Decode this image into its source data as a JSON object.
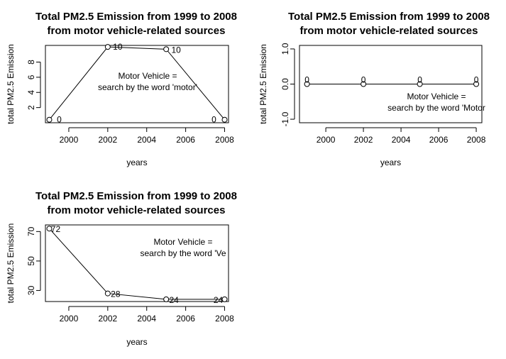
{
  "chart_data": [
    {
      "type": "line",
      "title": [
        "Total PM2.5 Emission from 1999 to 2008",
        "from motor vehicle-related sources"
      ],
      "xlabel": "years",
      "ylabel": "total PM2.5 Emission",
      "x": [
        1999,
        2002,
        2005,
        2008
      ],
      "y": [
        0.4,
        10.0,
        9.7,
        0.4
      ],
      "point_labels": [
        "0",
        "10",
        "10",
        "0"
      ],
      "xlim": [
        1998.8,
        2008.2
      ],
      "ylim": [
        0,
        10.2
      ],
      "xticks": [
        2000,
        2002,
        2004,
        2006,
        2008
      ],
      "xtick_labels": [
        "2000",
        "2002",
        "2004",
        "2006",
        "2008"
      ],
      "yticks": [
        2,
        4,
        6,
        8
      ],
      "ytick_labels": [
        "2",
        "4",
        "6",
        "8"
      ],
      "annotation": [
        "Motor Vehicle =",
        "search by the word 'motor'"
      ],
      "grid": false
    },
    {
      "type": "line",
      "title": [
        "Total PM2.5 Emission from 1999 to 2008",
        "from motor vehicle-related sources"
      ],
      "xlabel": "years",
      "ylabel": "total PM2.5 Emission",
      "x": [
        1999,
        2002,
        2005,
        2008
      ],
      "y": [
        0,
        0,
        0,
        0
      ],
      "point_labels": [
        "0",
        "0",
        "0",
        "0"
      ],
      "xlim": [
        1998.6,
        2008.3
      ],
      "ylim": [
        -1.1,
        1.1
      ],
      "xticks": [
        2000,
        2002,
        2004,
        2006,
        2008
      ],
      "xtick_labels": [
        "2000",
        "2002",
        "2004",
        "2006",
        "2008"
      ],
      "yticks": [
        -1.0,
        0.0,
        1.0
      ],
      "ytick_labels": [
        "-1.0",
        "0.0",
        "1.0"
      ],
      "annotation": [
        "Motor Vehicle =",
        "search by the word 'Motor"
      ],
      "grid": false
    },
    {
      "type": "line",
      "title": [
        "Total PM2.5 Emission from 1999 to 2008",
        "from motor vehicle-related sources"
      ],
      "xlabel": "years",
      "ylabel": "total PM2.5 Emission",
      "x": [
        1999,
        2002,
        2005,
        2008
      ],
      "y": [
        72,
        28,
        24,
        24
      ],
      "point_labels": [
        "72",
        "28",
        "24",
        "24"
      ],
      "xlim": [
        1998.8,
        2008.2
      ],
      "ylim": [
        22.5,
        74.5
      ],
      "xticks": [
        2000,
        2002,
        2004,
        2006,
        2008
      ],
      "xtick_labels": [
        "2000",
        "2002",
        "2004",
        "2006",
        "2008"
      ],
      "yticks": [
        30,
        50,
        70
      ],
      "ytick_labels": [
        "30",
        "50",
        "70"
      ],
      "annotation": [
        "Motor Vehicle =",
        "search by the word 'Ve"
      ],
      "grid": false
    }
  ]
}
